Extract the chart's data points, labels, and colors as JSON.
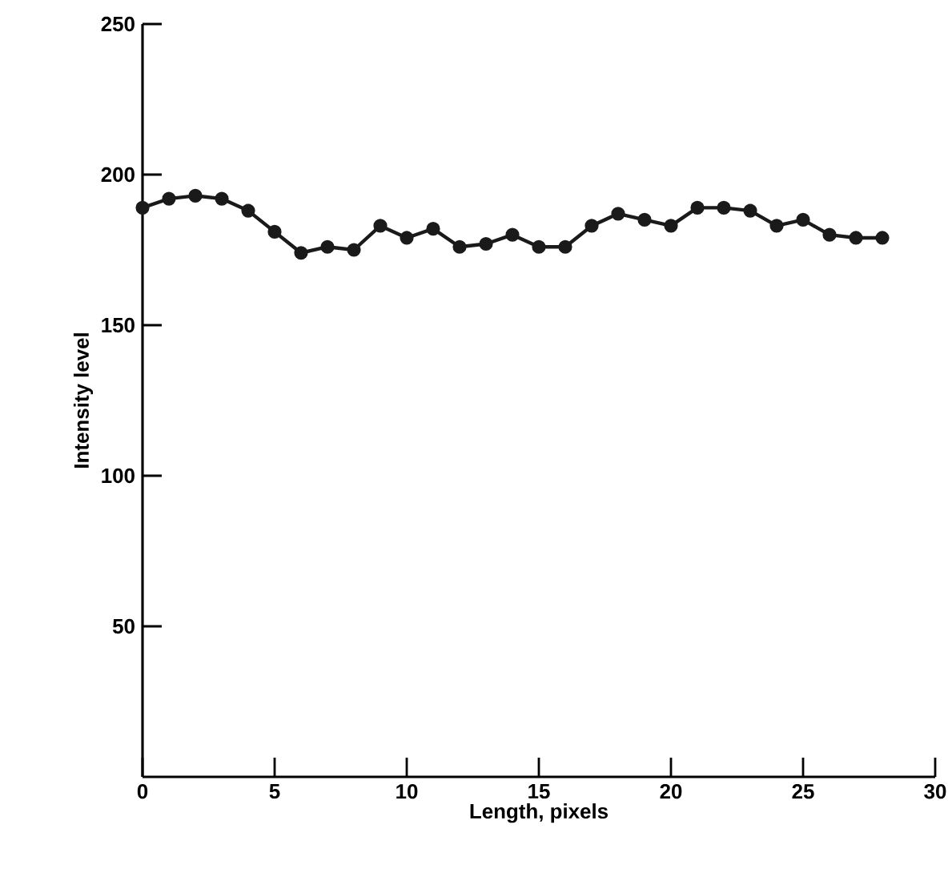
{
  "chart_data": {
    "type": "line",
    "xlabel": "Length, pixels",
    "ylabel": "Intensity level",
    "x": [
      0,
      1,
      2,
      3,
      4,
      5,
      6,
      7,
      8,
      9,
      10,
      11,
      12,
      13,
      14,
      15,
      16,
      17,
      18,
      19,
      20,
      21,
      22,
      23,
      24,
      25,
      26,
      27,
      28
    ],
    "series": [
      {
        "color": "#1a1a1a",
        "values": [
          189,
          192,
          193,
          192,
          188,
          181,
          174,
          176,
          175,
          183,
          179,
          182,
          176,
          177,
          180,
          176,
          176,
          183,
          187,
          185,
          183,
          189,
          189,
          188,
          183,
          185,
          180,
          179,
          179
        ]
      }
    ],
    "xlim": [
      0,
      30
    ],
    "ylim": [
      0,
      250
    ],
    "xticks": [
      0,
      5,
      10,
      15,
      20,
      25,
      30
    ],
    "yticks": [
      50,
      100,
      150,
      200,
      250
    ],
    "marker": "circle",
    "line_style": "solid"
  }
}
